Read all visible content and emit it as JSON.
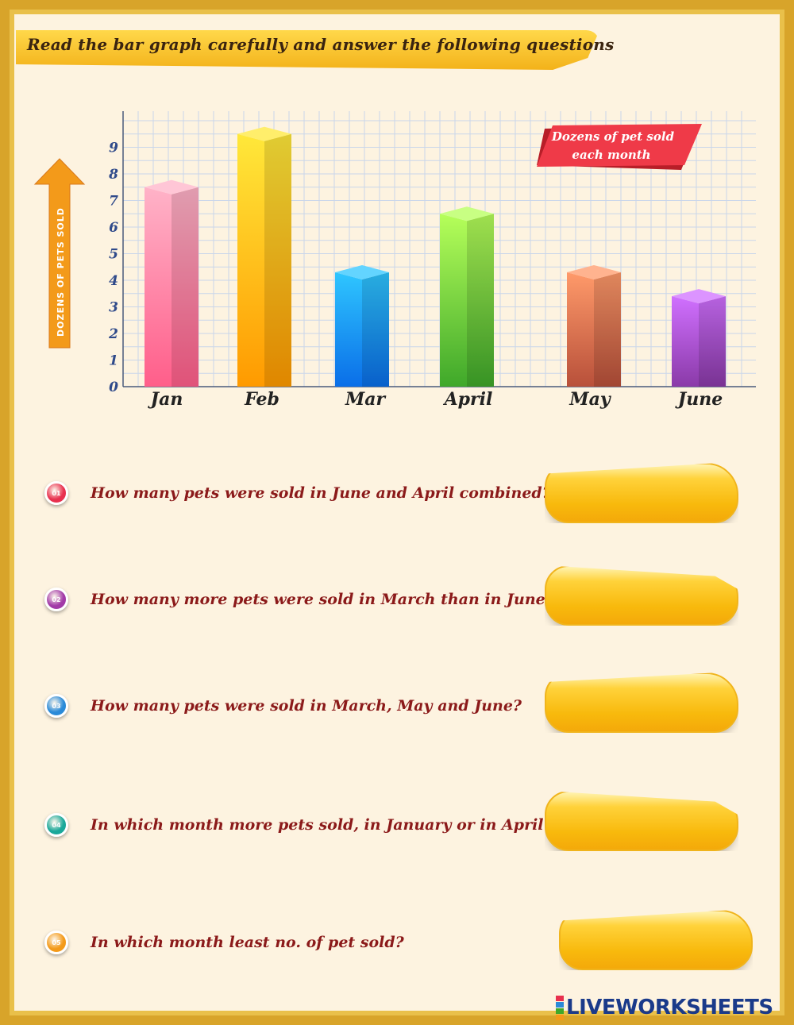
{
  "header": {
    "instruction": "Read the bar graph carefully and answer the following questions"
  },
  "chart_data": {
    "type": "bar",
    "categories": [
      "Jan",
      "Feb",
      "Mar",
      "April",
      "May",
      "June"
    ],
    "values": [
      7.5,
      9.5,
      4.3,
      6.5,
      4.3,
      3.4
    ],
    "yticks": [
      "0",
      "1",
      "2",
      "3",
      "4",
      "5",
      "6",
      "7",
      "8",
      "9"
    ],
    "ylim": [
      0,
      10
    ],
    "ylabel": "DOZENS OF PETS SOLD",
    "legend_text_line1": "Dozens of pet sold",
    "legend_text_line2": "each month",
    "grid": true,
    "bar_colors": [
      [
        "#ffb3c8",
        "#ff5e8a"
      ],
      [
        "#ffe83a",
        "#ff9a00"
      ],
      [
        "#2fc6ff",
        "#0a6ee8"
      ],
      [
        "#b6ff5a",
        "#3fa82a"
      ],
      [
        "#ff9a6a",
        "#b8503a"
      ],
      [
        "#d070ff",
        "#8a3aa8"
      ]
    ]
  },
  "questions": [
    {
      "number": "01",
      "text": "How many pets were sold in June and April combined?",
      "badge_color": "#e8304e"
    },
    {
      "number": "02",
      "text": "How many more pets were sold in March than in June?",
      "badge_color": "#a23aa8"
    },
    {
      "number": "03",
      "text": "How many pets were sold in March, May and June?",
      "badge_color": "#2a8ad8"
    },
    {
      "number": "04",
      "text": "In which month more pets sold, in January or in April?",
      "badge_color": "#1aa89a"
    },
    {
      "number": "05",
      "text": "In which month least no. of pet sold?",
      "badge_color": "#f39a1a"
    }
  ],
  "footer": {
    "logo_text": "LIVEWORKSHEETS"
  }
}
